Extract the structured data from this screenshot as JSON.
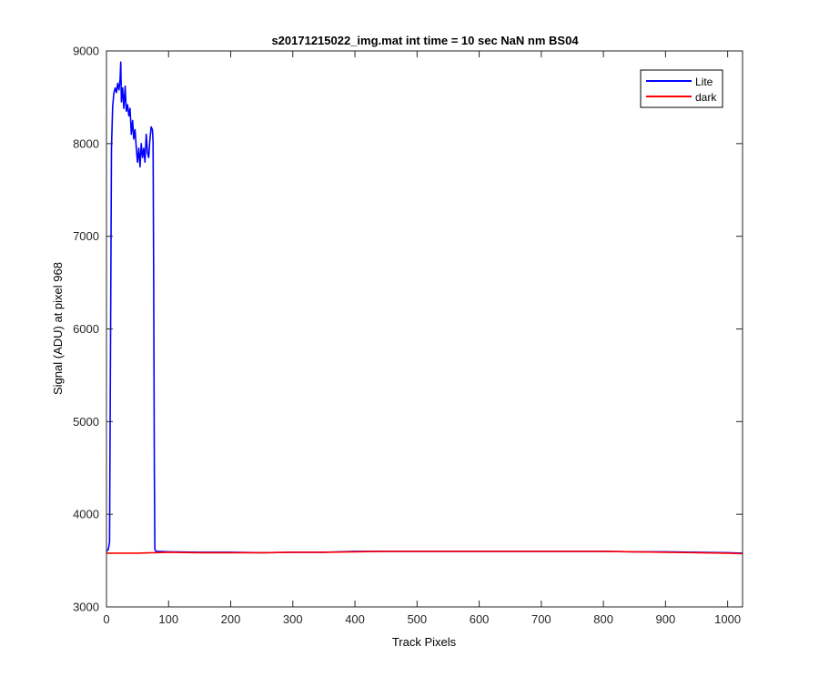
{
  "chart_data": {
    "type": "line",
    "title": "s20171215022_img.mat int time = 10 sec  NaN nm BS04",
    "xlabel": "Track Pixels",
    "ylabel": "Signal (ADU) at pixel 968",
    "xlim": [
      0,
      1024
    ],
    "ylim": [
      3000,
      9000
    ],
    "xticks": [
      0,
      100,
      200,
      300,
      400,
      500,
      600,
      700,
      800,
      900,
      1000
    ],
    "yticks": [
      3000,
      4000,
      5000,
      6000,
      7000,
      8000,
      9000
    ],
    "grid": false,
    "legend_position": "top-right",
    "series": [
      {
        "name": "Lite",
        "color": "#0000ff",
        "x": [
          0,
          3,
          5,
          8,
          10,
          12,
          14,
          16,
          18,
          20,
          22,
          23,
          24,
          26,
          28,
          30,
          32,
          34,
          36,
          38,
          40,
          42,
          44,
          46,
          48,
          50,
          52,
          54,
          56,
          58,
          60,
          62,
          64,
          66,
          68,
          70,
          72,
          74,
          75,
          76,
          77,
          78,
          80,
          100,
          150,
          200,
          250,
          300,
          350,
          400,
          450,
          500,
          550,
          600,
          650,
          700,
          750,
          800,
          850,
          900,
          950,
          1000,
          1024
        ],
        "y": [
          3600,
          3620,
          3700,
          7950,
          8400,
          8550,
          8600,
          8550,
          8650,
          8580,
          8700,
          8880,
          8450,
          8600,
          8380,
          8620,
          8350,
          8420,
          8300,
          8380,
          8100,
          8250,
          8050,
          8150,
          7950,
          7800,
          7950,
          7750,
          8000,
          7850,
          7950,
          7800,
          8100,
          7900,
          7850,
          8050,
          8180,
          8150,
          8020,
          6500,
          4500,
          3620,
          3600,
          3595,
          3590,
          3590,
          3585,
          3590,
          3590,
          3600,
          3600,
          3600,
          3600,
          3600,
          3600,
          3600,
          3600,
          3600,
          3595,
          3595,
          3590,
          3585,
          3580
        ]
      },
      {
        "name": "dark",
        "color": "#ff0000",
        "x": [
          0,
          50,
          100,
          150,
          200,
          250,
          300,
          350,
          400,
          450,
          500,
          550,
          600,
          650,
          700,
          750,
          800,
          850,
          900,
          950,
          1000,
          1024
        ],
        "y": [
          3580,
          3580,
          3590,
          3585,
          3585,
          3585,
          3590,
          3590,
          3595,
          3600,
          3600,
          3600,
          3600,
          3600,
          3600,
          3600,
          3600,
          3595,
          3590,
          3585,
          3580,
          3575
        ]
      }
    ]
  }
}
